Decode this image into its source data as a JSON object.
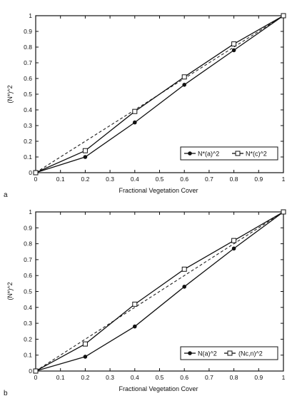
{
  "chart_data": [
    {
      "type": "line",
      "panel_label": "a",
      "xlabel": "Fractional Vegetation Cover",
      "ylabel": "(N*)^2",
      "xlim": [
        0,
        1
      ],
      "ylim": [
        0,
        1
      ],
      "xticks": [
        "0",
        "0.1",
        "0.2",
        "0.3",
        "0.4",
        "0.5",
        "0.6",
        "0.7",
        "0.8",
        "0.9",
        "1"
      ],
      "yticks": [
        "0",
        "0.1",
        "0.2",
        "0.3",
        "0.4",
        "0.5",
        "0.6",
        "0.7",
        "0.8",
        "0.9",
        "1"
      ],
      "reference_line": {
        "x": [
          0,
          1
        ],
        "y": [
          0,
          1
        ],
        "style": "dashed"
      },
      "legend_position": "lower-right",
      "series": [
        {
          "name": "N*(a)^2",
          "marker": "filled-circle",
          "x": [
            0,
            0.2,
            0.4,
            0.6,
            0.8,
            1.0
          ],
          "y": [
            0,
            0.1,
            0.32,
            0.56,
            0.78,
            1.0
          ]
        },
        {
          "name": "N*(c)^2",
          "marker": "open-square",
          "x": [
            0,
            0.2,
            0.4,
            0.6,
            0.8,
            1.0
          ],
          "y": [
            0,
            0.14,
            0.39,
            0.61,
            0.82,
            1.0
          ]
        }
      ]
    },
    {
      "type": "line",
      "panel_label": "b",
      "xlabel": "Fractional Vegetation Cover",
      "ylabel": "(N*)^2",
      "xlim": [
        0,
        1
      ],
      "ylim": [
        0,
        1
      ],
      "xticks": [
        "0",
        "0.1",
        "0.2",
        "0.3",
        "0.4",
        "0.5",
        "0.6",
        "0.7",
        "0.8",
        "0.9",
        "1"
      ],
      "yticks": [
        "0",
        "0.1",
        "0.2",
        "0.3",
        "0.4",
        "0.5",
        "0.6",
        "0.7",
        "0.8",
        "0.9",
        "1"
      ],
      "reference_line": {
        "x": [
          0,
          1
        ],
        "y": [
          0,
          1
        ],
        "style": "dashed"
      },
      "legend_position": "lower-right",
      "series": [
        {
          "name": "N(a)^2",
          "marker": "filled-circle",
          "x": [
            0,
            0.2,
            0.4,
            0.6,
            0.8,
            1.0
          ],
          "y": [
            0,
            0.09,
            0.28,
            0.53,
            0.77,
            1.0
          ]
        },
        {
          "name": "(Nc,n)^2",
          "marker": "open-square",
          "x": [
            0,
            0.2,
            0.4,
            0.6,
            0.8,
            1.0
          ],
          "y": [
            0,
            0.17,
            0.42,
            0.64,
            0.82,
            1.0
          ]
        }
      ]
    }
  ]
}
